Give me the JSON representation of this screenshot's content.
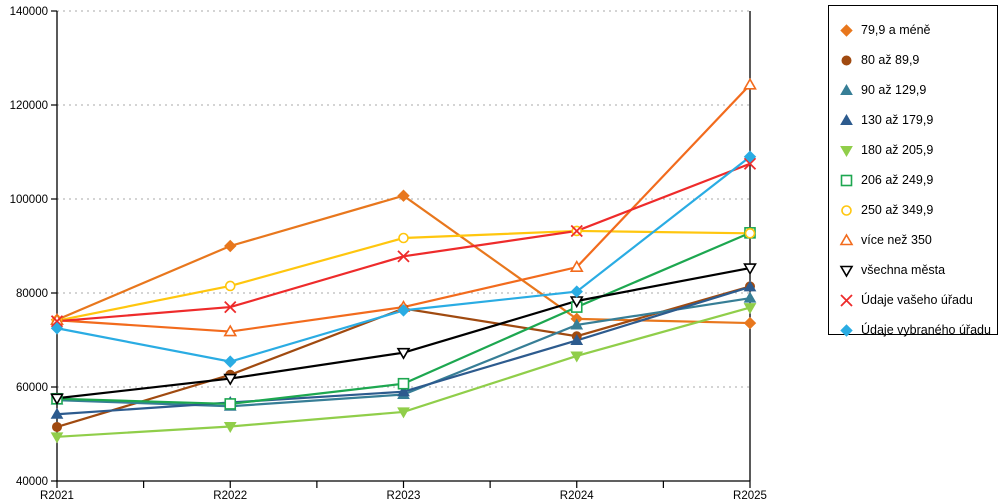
{
  "chart_data": {
    "type": "line",
    "title": "",
    "xlabel": "",
    "ylabel": "",
    "categories": [
      "R2021",
      "R2022",
      "R2023",
      "R2024",
      "R2025"
    ],
    "ylim": [
      40000,
      140000
    ],
    "ytick_step": 20000,
    "yticks": [
      40000,
      60000,
      80000,
      100000,
      120000,
      140000
    ],
    "grid": "horizontal-dotted",
    "grid_color": "#aaaaaa",
    "legend_position": "right",
    "series": [
      {
        "name": "79,9 a méně",
        "color": "#E8771D",
        "marker": "diamond",
        "filled": true,
        "values": [
          74300,
          90000,
          100700,
          74500,
          73600
        ]
      },
      {
        "name": "80 až 89,9",
        "color": "#A04A10",
        "marker": "circle",
        "filled": true,
        "values": [
          51500,
          62600,
          76700,
          70800,
          81400
        ]
      },
      {
        "name": "90 až 129,9",
        "color": "#377E96",
        "marker": "triangle-up",
        "filled": true,
        "values": [
          57200,
          55900,
          58400,
          73200,
          78900
        ]
      },
      {
        "name": "130 až 179,9",
        "color": "#2D5B8E",
        "marker": "triangle-up",
        "filled": true,
        "values": [
          54200,
          56700,
          59000,
          69900,
          81300
        ]
      },
      {
        "name": "180 až 205,9",
        "color": "#90CE4A",
        "marker": "triangle-down",
        "filled": true,
        "values": [
          49400,
          51600,
          54700,
          66600,
          76900
        ]
      },
      {
        "name": "206 až 249,9",
        "color": "#1DA750",
        "marker": "square",
        "filled": false,
        "values": [
          57500,
          56400,
          60700,
          77000,
          92800
        ]
      },
      {
        "name": "250 až 349,9",
        "color": "#FFC60E",
        "marker": "circle",
        "filled": false,
        "values": [
          74100,
          81500,
          91700,
          93200,
          92700
        ]
      },
      {
        "name": "více než 350",
        "color": "#F26B1D",
        "marker": "triangle-up",
        "filled": false,
        "values": [
          74200,
          71800,
          77000,
          85500,
          124300
        ]
      },
      {
        "name": "všechna města",
        "color": "#000000",
        "marker": "triangle-down",
        "filled": false,
        "values": [
          57600,
          61800,
          67300,
          78300,
          85300
        ]
      },
      {
        "name": "Údaje vašeho úřadu",
        "color": "#EE2B2B",
        "marker": "x",
        "filled": false,
        "values": [
          74000,
          77000,
          87800,
          93200,
          107500
        ]
      },
      {
        "name": "Údaje vybraného úřadu",
        "color": "#2AACE3",
        "marker": "diamond",
        "filled": true,
        "values": [
          72500,
          65400,
          76300,
          80300,
          109000
        ]
      }
    ]
  }
}
